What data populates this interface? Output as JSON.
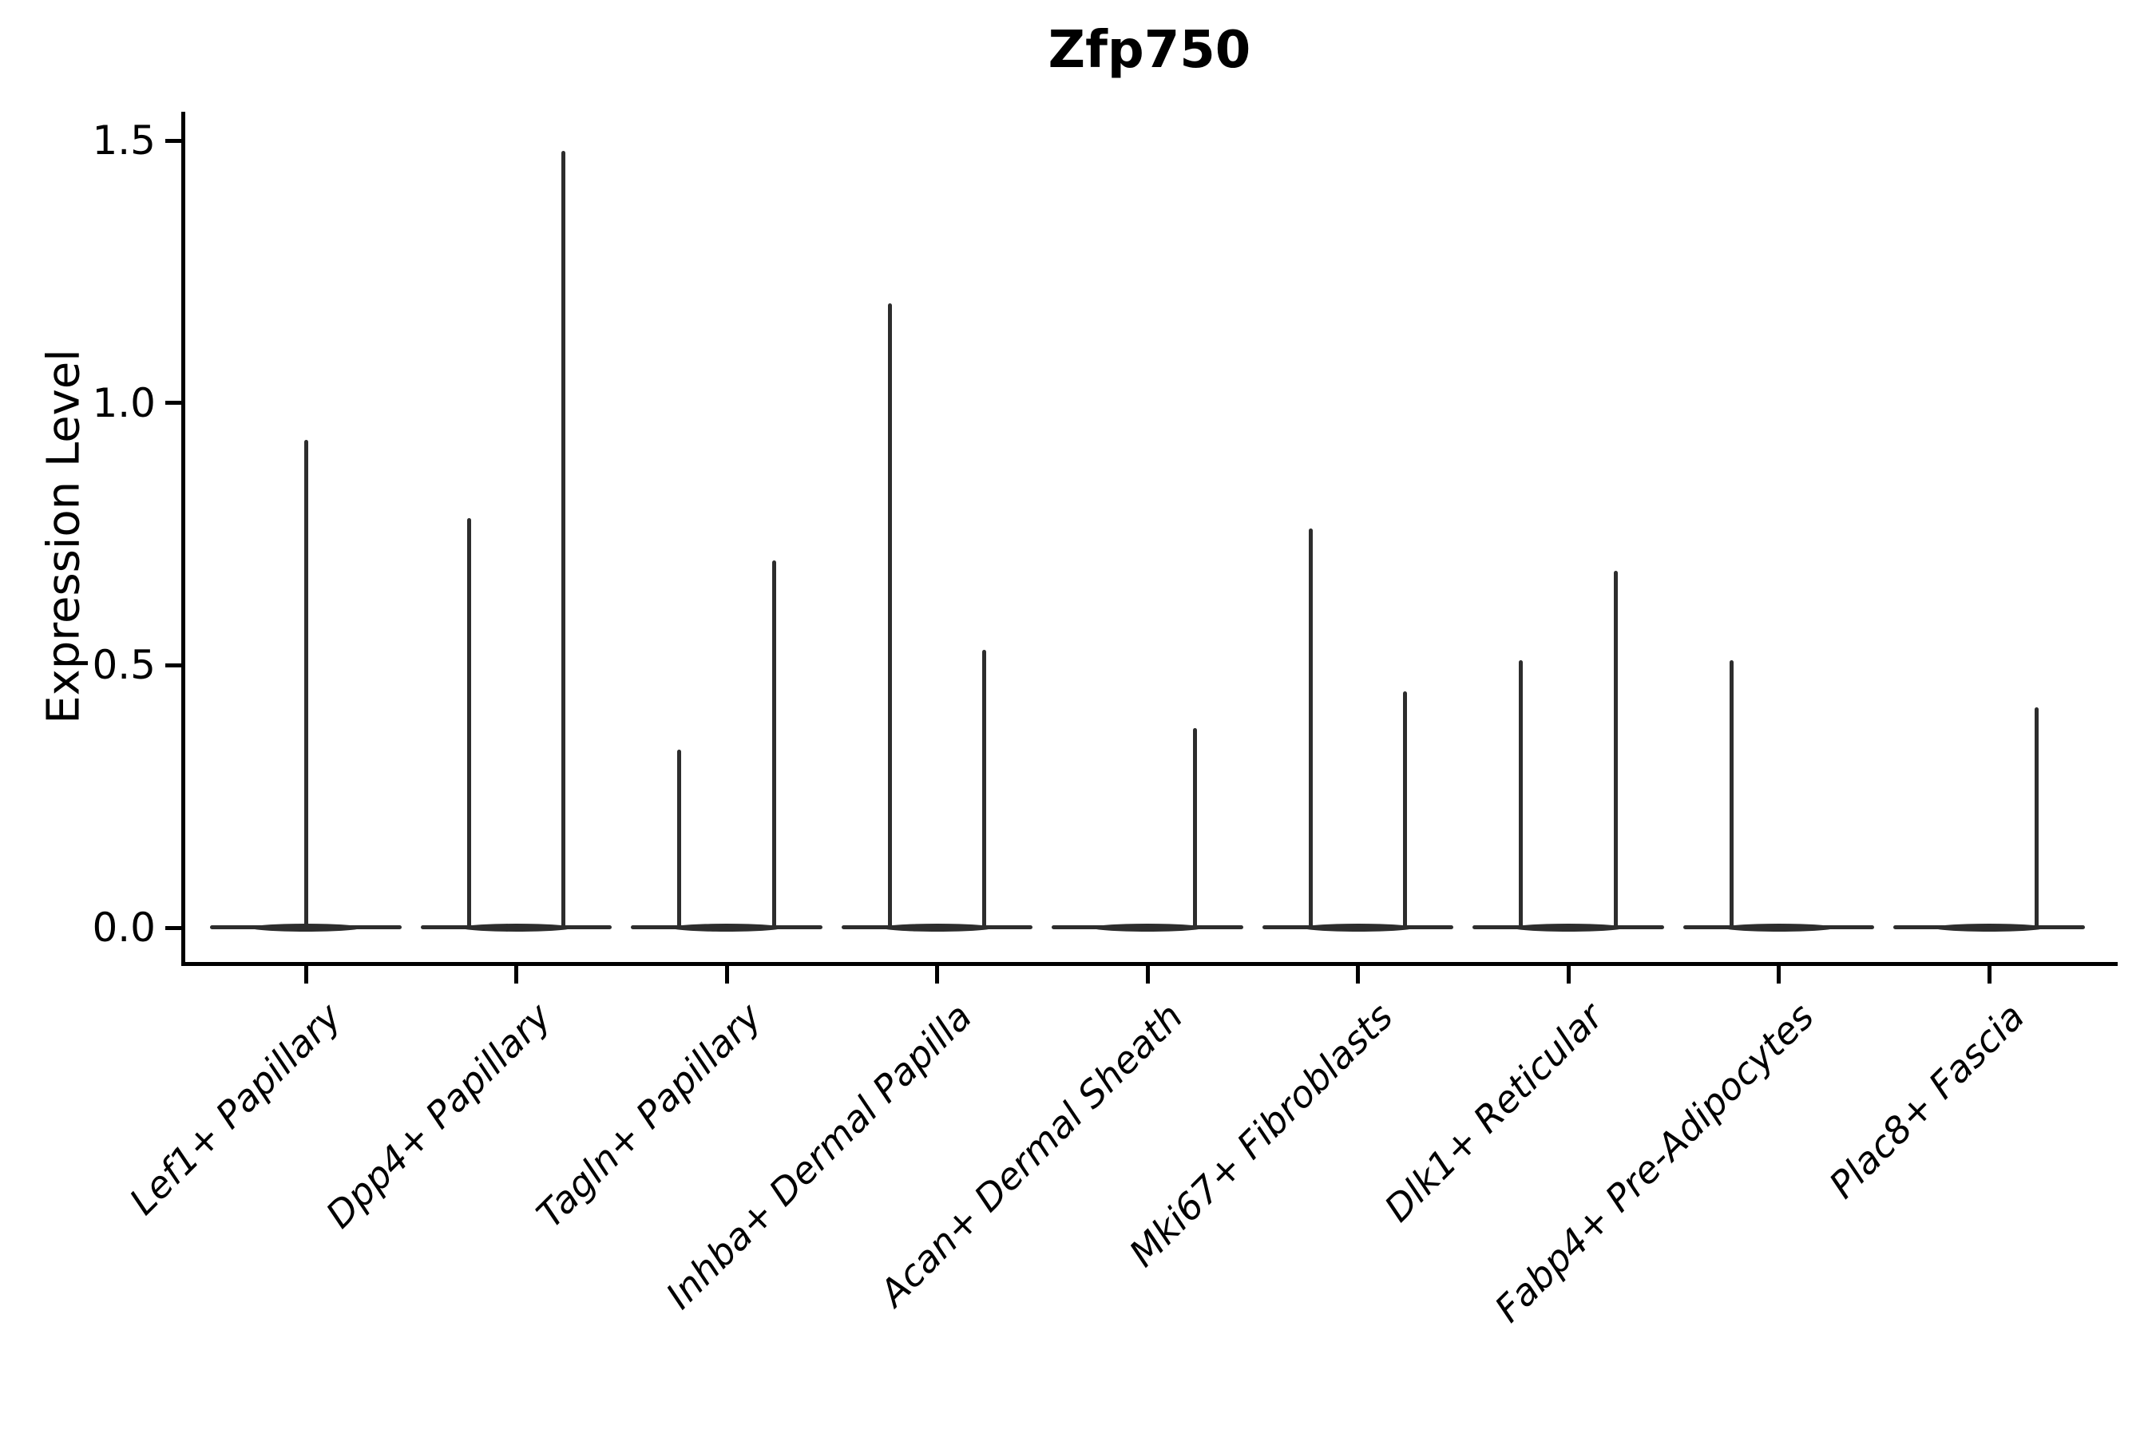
{
  "chart_data": {
    "type": "violin",
    "title": "Zfp750",
    "xlabel": "",
    "ylabel": "Expression Level",
    "ylim": [
      -0.07,
      1.56
    ],
    "grid": false,
    "legend": null,
    "yticks": [
      {
        "value": 0.0,
        "label": "0.0"
      },
      {
        "value": 0.5,
        "label": "0.5"
      },
      {
        "value": 1.0,
        "label": "1.0"
      },
      {
        "value": 1.5,
        "label": "1.5"
      }
    ],
    "categories": [
      {
        "label": "Lef1+ Papillary",
        "spikes": [
          {
            "offset": 0.0,
            "max": 0.93
          }
        ]
      },
      {
        "label": "Dpp4+ Papillary",
        "spikes": [
          {
            "offset": -0.224,
            "max": 0.78
          },
          {
            "offset": 0.224,
            "max": 1.48
          }
        ]
      },
      {
        "label": "Tagln+ Papillary",
        "spikes": [
          {
            "offset": -0.224,
            "max": 0.34
          },
          {
            "offset": 0.224,
            "max": 0.7
          }
        ]
      },
      {
        "label": "Inhba+ Dermal Papilla",
        "spikes": [
          {
            "offset": -0.224,
            "max": 1.19
          },
          {
            "offset": 0.224,
            "max": 0.53
          }
        ]
      },
      {
        "label": "Acan+ Dermal Sheath",
        "spikes": [
          {
            "offset": 0.224,
            "max": 0.38
          }
        ]
      },
      {
        "label": "Mki67+ Fibroblasts",
        "spikes": [
          {
            "offset": -0.224,
            "max": 0.76
          },
          {
            "offset": 0.224,
            "max": 0.45
          }
        ]
      },
      {
        "label": "Dlk1+ Reticular",
        "spikes": [
          {
            "offset": -0.224,
            "max": 0.51
          },
          {
            "offset": 0.224,
            "max": 0.68
          }
        ]
      },
      {
        "label": "Fabp4+ Pre-Adipocytes",
        "spikes": [
          {
            "offset": -0.224,
            "max": 0.51
          }
        ]
      },
      {
        "label": "Plac8+ Fascia",
        "spikes": [
          {
            "offset": 0.224,
            "max": 0.42
          }
        ]
      }
    ],
    "style": {
      "violin_color": "#2d2d2d",
      "axis_color": "#000000",
      "text_color": "#000000",
      "background": "#ffffff",
      "body_halfwidth_frac": 0.455,
      "body_at_value": 0.0
    }
  }
}
